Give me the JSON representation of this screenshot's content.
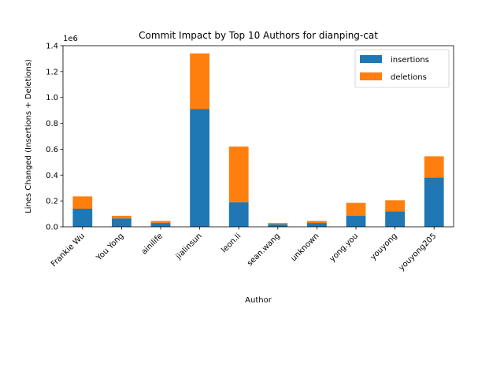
{
  "chart_data": {
    "type": "bar",
    "stacked": true,
    "title": "Commit Impact by Top 10 Authors for dianping-cat",
    "xlabel": "Author",
    "ylabel": "Lines Changed (Insertions + Deletions)",
    "y_scale_label": "1e6",
    "ylim": [
      0,
      1.4
    ],
    "yticks": [
      "0.0",
      "0.2",
      "0.4",
      "0.6",
      "0.8",
      "1.0",
      "1.2",
      "1.4"
    ],
    "categories": [
      "Frankie Wu",
      "You Yong",
      "ainilife",
      "jialinsun",
      "leon.li",
      "sean.wang",
      "unknown",
      "yong.you",
      "youyong",
      "youyong205"
    ],
    "series": [
      {
        "name": "insertions",
        "color": "#1f77b4",
        "values": [
          0.14,
          0.065,
          0.03,
          0.91,
          0.19,
          0.02,
          0.03,
          0.085,
          0.12,
          0.38
        ]
      },
      {
        "name": "deletions",
        "color": "#ff7f0e",
        "values": [
          0.095,
          0.02,
          0.015,
          0.43,
          0.43,
          0.01,
          0.015,
          0.1,
          0.085,
          0.165
        ]
      }
    ],
    "legend_position": "top-right",
    "grid": false
  }
}
